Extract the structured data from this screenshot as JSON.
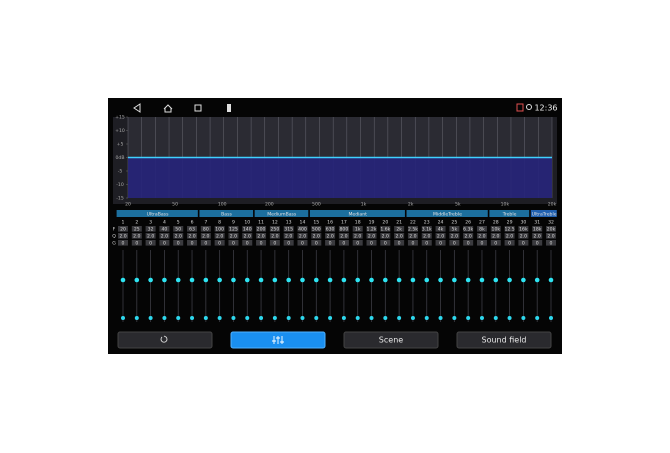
{
  "status": {
    "time": "12:36"
  },
  "graph": {
    "ylim": [
      -15,
      15
    ],
    "yticks": [
      {
        "value": 15,
        "label": "+15"
      },
      {
        "value": 10,
        "label": "+10"
      },
      {
        "value": 5,
        "label": "+5"
      },
      {
        "value": 0,
        "label": "0dB"
      },
      -5,
      -10,
      -15
    ],
    "xticks": [
      "20",
      "50",
      "100",
      "200",
      "500",
      "1k",
      "2k",
      "5k",
      "10k",
      "20k"
    ]
  },
  "row_labels": [
    "F",
    "Q",
    "G"
  ],
  "groups": [
    {
      "name": "UltraBass",
      "bands": [
        {
          "number": 1,
          "freq": "20",
          "q": "2.0",
          "gain": 0
        },
        {
          "number": 2,
          "freq": "25",
          "q": "2.0",
          "gain": 0
        },
        {
          "number": 3,
          "freq": "32",
          "q": "2.0",
          "gain": 0
        },
        {
          "number": 4,
          "freq": "40",
          "q": "2.0",
          "gain": 0
        },
        {
          "number": 5,
          "freq": "50",
          "q": "2.0",
          "gain": 0
        },
        {
          "number": 6,
          "freq": "63",
          "q": "2.0",
          "gain": 0
        }
      ]
    },
    {
      "name": "Bass",
      "bands": [
        {
          "number": 7,
          "freq": "80",
          "q": "2.0",
          "gain": 0
        },
        {
          "number": 8,
          "freq": "100",
          "q": "2.0",
          "gain": 0
        },
        {
          "number": 9,
          "freq": "125",
          "q": "2.0",
          "gain": 0
        },
        {
          "number": 10,
          "freq": "140",
          "q": "2.0",
          "gain": 0
        }
      ]
    },
    {
      "name": "MediumBass",
      "bands": [
        {
          "number": 11,
          "freq": "200",
          "q": "2.0",
          "gain": 0
        },
        {
          "number": 12,
          "freq": "250",
          "q": "2.0",
          "gain": 0
        },
        {
          "number": 13,
          "freq": "315",
          "q": "2.0",
          "gain": 0
        },
        {
          "number": 14,
          "freq": "400",
          "q": "2.0",
          "gain": 0
        }
      ]
    },
    {
      "name": "Mediant",
      "bands": [
        {
          "number": 15,
          "freq": "500",
          "q": "2.0",
          "gain": 0
        },
        {
          "number": 16,
          "freq": "630",
          "q": "2.0",
          "gain": 0
        },
        {
          "number": 17,
          "freq": "800",
          "q": "2.0",
          "gain": 0
        },
        {
          "number": 18,
          "freq": "1k",
          "q": "2.0",
          "gain": 0
        },
        {
          "number": 19,
          "freq": "1.2k",
          "q": "2.0",
          "gain": 0
        },
        {
          "number": 20,
          "freq": "1.6k",
          "q": "2.0",
          "gain": 0
        },
        {
          "number": 21,
          "freq": "2k",
          "q": "2.0",
          "gain": 0
        }
      ]
    },
    {
      "name": "MiddleTreble",
      "bands": [
        {
          "number": 22,
          "freq": "2.5k",
          "q": "2.0",
          "gain": 0
        },
        {
          "number": 23,
          "freq": "3.1k",
          "q": "2.0",
          "gain": 0
        },
        {
          "number": 24,
          "freq": "4k",
          "q": "2.0",
          "gain": 0
        },
        {
          "number": 25,
          "freq": "5k",
          "q": "2.0",
          "gain": 0
        },
        {
          "number": 26,
          "freq": "6.3k",
          "q": "2.0",
          "gain": 0
        },
        {
          "number": 27,
          "freq": "8k",
          "q": "2.0",
          "gain": 0
        }
      ]
    },
    {
      "name": "Treble",
      "bands": [
        {
          "number": 28,
          "freq": "10k",
          "q": "2.0",
          "gain": 0
        },
        {
          "number": 29,
          "freq": "12.5",
          "q": "2.0",
          "gain": 0
        },
        {
          "number": 30,
          "freq": "16k",
          "q": "2.0",
          "gain": 0
        }
      ]
    },
    {
      "name": "UltraTreble",
      "bands": [
        {
          "number": 31,
          "freq": "18k",
          "q": "2.0",
          "gain": 0
        },
        {
          "number": 32,
          "freq": "20k",
          "q": "2.0",
          "gain": 0
        }
      ]
    }
  ],
  "buttons": [
    "Scene",
    "Sound field"
  ]
}
